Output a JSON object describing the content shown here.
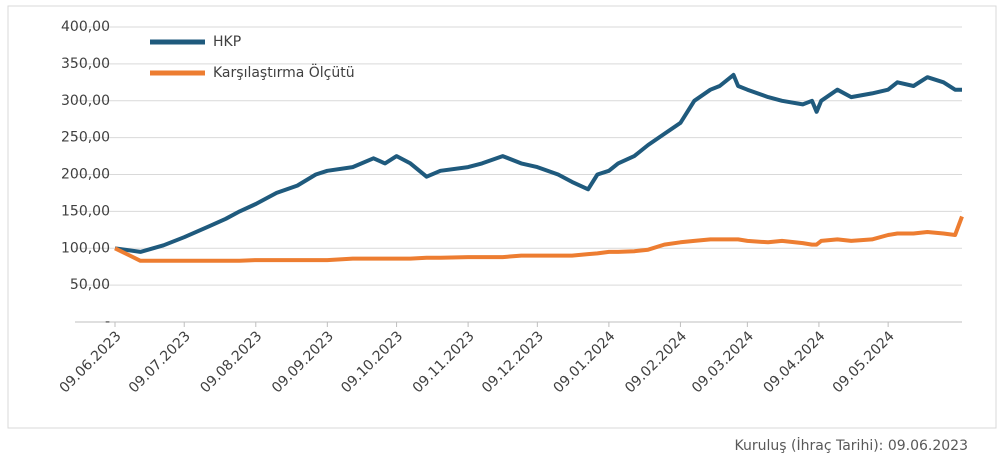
{
  "chart_data": {
    "type": "line",
    "x": [
      "09.06.2023",
      "20.06.2023",
      "30.06.2023",
      "09.07.2023",
      "20.07.2023",
      "27.07.2023",
      "02.08.2023",
      "09.08.2023",
      "18.08.2023",
      "27.08.2023",
      "04.09.2023",
      "09.09.2023",
      "20.09.2023",
      "29.09.2023",
      "04.10.2023",
      "09.10.2023",
      "15.10.2023",
      "22.10.2023",
      "28.10.2023",
      "09.11.2023",
      "15.11.2023",
      "24.11.2023",
      "02.12.2023",
      "09.12.2023",
      "18.12.2023",
      "24.12.2023",
      "31.12.2023",
      "04.01.2024",
      "09.01.2024",
      "13.01.2024",
      "20.01.2024",
      "26.01.2024",
      "02.02.2024",
      "09.02.2024",
      "15.02.2024",
      "22.02.2024",
      "26.02.2024",
      "03.03.2024",
      "05.03.2024",
      "09.03.2024",
      "18.03.2024",
      "24.03.2024",
      "02.04.2024",
      "06.04.2024",
      "08.04.2024",
      "10.04.2024",
      "17.04.2024",
      "23.04.2024",
      "02.05.2024",
      "09.05.2024",
      "13.05.2024",
      "20.05.2024",
      "26.05.2024",
      "02.06.2024",
      "07.06.2024",
      "10.06.2024"
    ],
    "series": [
      {
        "name": "HKP",
        "color": "#1f5a7d",
        "values": [
          100,
          95,
          104,
          115,
          130,
          140,
          150,
          160,
          175,
          185,
          200,
          205,
          210,
          222,
          215,
          225,
          215,
          197,
          205,
          210,
          215,
          225,
          215,
          210,
          200,
          190,
          180,
          200,
          205,
          215,
          225,
          240,
          255,
          270,
          300,
          315,
          320,
          335,
          320,
          315,
          305,
          300,
          295,
          300,
          285,
          300,
          315,
          305,
          310,
          315,
          325,
          320,
          332,
          325,
          315,
          315
        ]
      },
      {
        "name": "Karşılaştırma Ölçütü",
        "color": "#ed7d31",
        "values": [
          100,
          83,
          83,
          83,
          83,
          83,
          83,
          84,
          84,
          84,
          84,
          84,
          86,
          86,
          86,
          86,
          86,
          87,
          87,
          88,
          88,
          88,
          90,
          90,
          90,
          90,
          92,
          93,
          95,
          95,
          96,
          98,
          105,
          108,
          110,
          112,
          112,
          112,
          112,
          110,
          108,
          110,
          107,
          105,
          105,
          110,
          112,
          110,
          112,
          118,
          120,
          120,
          122,
          120,
          118,
          143
        ]
      }
    ],
    "xlim": [
      "09.06.2023",
      "10.06.2024"
    ],
    "xticks": [
      "09.06.2023",
      "09.07.2023",
      "09.08.2023",
      "09.09.2023",
      "09.10.2023",
      "09.11.2023",
      "09.12.2023",
      "09.01.2024",
      "09.02.2024",
      "09.03.2024",
      "09.04.2024",
      "09.05.2024"
    ],
    "ylim": [
      0,
      400
    ],
    "yticks": [
      {
        "value": 0,
        "label": "-"
      },
      {
        "value": 50,
        "label": "50,00"
      },
      {
        "value": 100,
        "label": "100,00"
      },
      {
        "value": 150,
        "label": "150,00"
      },
      {
        "value": 200,
        "label": "200,00"
      },
      {
        "value": 250,
        "label": "250,00"
      },
      {
        "value": 300,
        "label": "300,00"
      },
      {
        "value": 350,
        "label": "350,00"
      },
      {
        "value": 400,
        "label": "400,00"
      }
    ],
    "grid": true,
    "legend": "top-left",
    "footnote": "Kuruluş (İhraç Tarihi): 09.06.2023"
  }
}
